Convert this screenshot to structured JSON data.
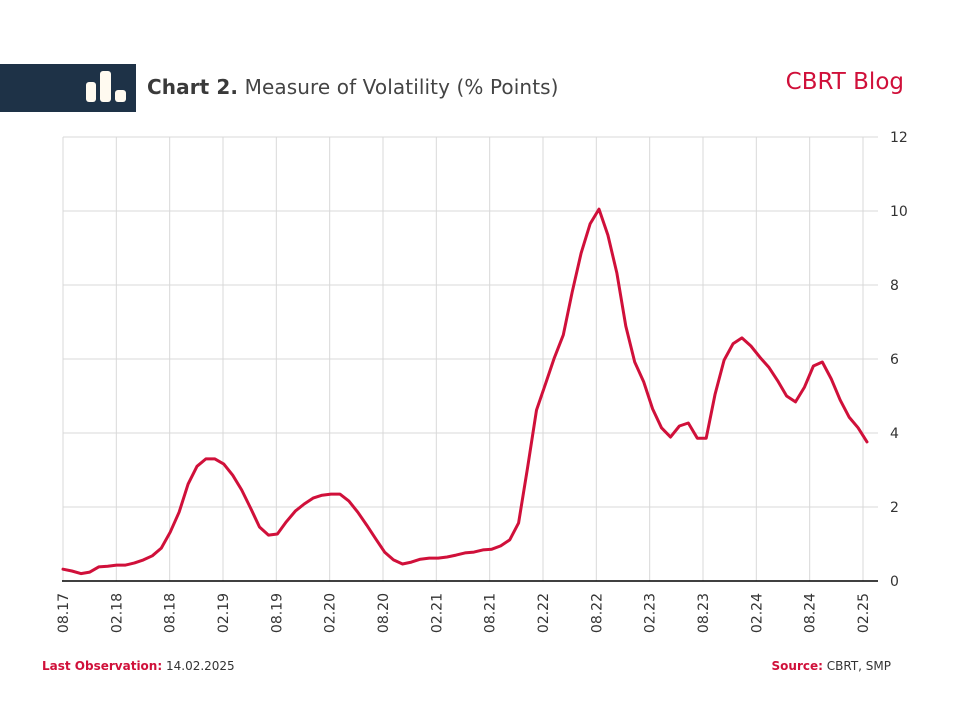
{
  "header": {
    "logo_icon": "bar-chart-icon",
    "title_bold": "Chart 2.",
    "title_rest": "Measure of Volatility (% Points)",
    "brand": "CBRT Blog"
  },
  "footer": {
    "last_observation_label": "Last Observation:",
    "last_observation_value": "14.02.2025",
    "source_label": "Source:",
    "source_value": "CBRT, SMP"
  },
  "colors": {
    "line": "#d0103a",
    "header_bar": "#1e3247",
    "grid": "#d9d9d9",
    "axis": "#000000",
    "accent": "#d0103a"
  },
  "chart_data": {
    "type": "line",
    "title": "Chart 2. Measure of Volatility (% Points)",
    "xlabel": "",
    "ylabel": "% Points",
    "y_axis_position": "right",
    "ylim": [
      0,
      12
    ],
    "yticks": [
      0,
      2,
      4,
      6,
      8,
      10,
      12
    ],
    "xticks": [
      "08.17",
      "02.18",
      "08.18",
      "02.19",
      "08.19",
      "02.20",
      "08.20",
      "02.21",
      "08.21",
      "02.22",
      "08.22",
      "02.23",
      "08.23",
      "02.24",
      "08.24",
      "02.25"
    ],
    "x_range": [
      "08.17",
      "02.25"
    ],
    "grid": true,
    "legend": "none",
    "series": [
      {
        "name": "Measure of Volatility",
        "values": [
          0.32,
          0.27,
          0.2,
          0.24,
          0.38,
          0.4,
          0.43,
          0.43,
          0.49,
          0.57,
          0.68,
          0.89,
          1.32,
          1.86,
          2.62,
          3.1,
          3.3,
          3.3,
          3.16,
          2.86,
          2.46,
          1.97,
          1.46,
          1.24,
          1.27,
          1.6,
          1.89,
          2.08,
          2.24,
          2.32,
          2.35,
          2.35,
          2.16,
          1.86,
          1.51,
          1.14,
          0.78,
          0.57,
          0.46,
          0.51,
          0.59,
          0.62,
          0.62,
          0.65,
          0.7,
          0.76,
          0.78,
          0.84,
          0.86,
          0.95,
          1.11,
          1.57,
          3.05,
          4.62,
          5.32,
          6.03,
          6.65,
          7.81,
          8.86,
          9.65,
          10.05,
          9.35,
          8.32,
          6.89,
          5.92,
          5.38,
          4.65,
          4.14,
          3.89,
          4.19,
          4.27,
          3.86,
          3.86,
          5.05,
          5.97,
          6.41,
          6.57,
          6.35,
          6.05,
          5.78,
          5.41,
          5.0,
          4.84,
          5.24,
          5.81,
          5.92,
          5.46,
          4.89,
          4.43,
          4.14,
          3.76
        ]
      }
    ]
  }
}
